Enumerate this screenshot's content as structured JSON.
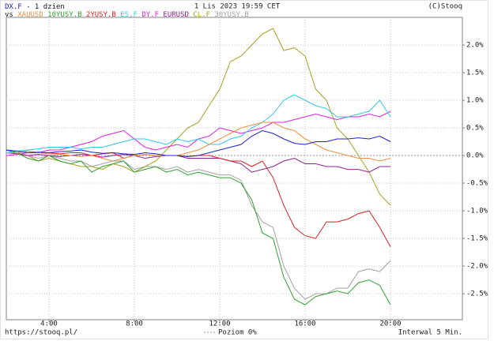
{
  "chart_data": {
    "type": "line",
    "period": "- 1 dzien",
    "date": "1 Lis 2023 19:59 CET",
    "copyright": "(C)Stooq",
    "legend_prefix": "vs",
    "footer_left": "https://stooq.pl/",
    "zero_line_label": "Poziom 0%",
    "footer_right": "Interwal 5 Min.",
    "grid": true,
    "x": [
      2,
      2.5,
      3,
      3.5,
      4,
      4.5,
      5,
      5.5,
      6,
      6.5,
      7,
      7.5,
      8,
      8.5,
      9,
      9.5,
      10,
      10.5,
      11,
      11.5,
      12,
      12.5,
      13,
      13.5,
      14,
      14.5,
      15,
      15.5,
      16,
      16.5,
      17,
      17.5,
      18,
      18.5,
      19,
      19.5,
      20
    ],
    "xlim": [
      2,
      23.37
    ],
    "xticks": [
      {
        "value": 4,
        "label": "4:00"
      },
      {
        "value": 8,
        "label": "8:00"
      },
      {
        "value": 12,
        "label": "12:00"
      },
      {
        "value": 16,
        "label": "16:00"
      },
      {
        "value": 20,
        "label": "20:00"
      }
    ],
    "ylim": [
      -2.97,
      2.5
    ],
    "yticks": [
      {
        "value": 2,
        "label": "2.0%"
      },
      {
        "value": 1.5,
        "label": "1.5%"
      },
      {
        "value": 1,
        "label": "1.0%"
      },
      {
        "value": 0.5,
        "label": "0.5%"
      },
      {
        "value": 0,
        "label": "0.0%"
      },
      {
        "value": -0.5,
        "label": "-0.5%"
      },
      {
        "value": -1,
        "label": "-1.0%"
      },
      {
        "value": -1.5,
        "label": "-1.5%"
      },
      {
        "value": -2,
        "label": "-2.0%"
      },
      {
        "value": -2.5,
        "label": "-2.5%"
      }
    ],
    "series": [
      {
        "name": "DX.F",
        "color": "#2020d0",
        "values": [
          0.1,
          0.08,
          0.05,
          0.06,
          0.05,
          0.07,
          0.08,
          0.1,
          0.06,
          0.04,
          0.05,
          0.03,
          0.02,
          0.05,
          0.03,
          0.0,
          0.0,
          -0.02,
          0.0,
          0.05,
          0.1,
          0.15,
          0.2,
          0.35,
          0.45,
          0.4,
          0.3,
          0.22,
          0.2,
          0.25,
          0.25,
          0.3,
          0.3,
          0.32,
          0.3,
          0.35,
          0.25
        ]
      },
      {
        "name": "XAUUSD",
        "color": "#f09040",
        "values": [
          0.05,
          0.05,
          0.08,
          0.05,
          0.03,
          0.02,
          0.0,
          -0.02,
          0.0,
          -0.05,
          -0.1,
          -0.05,
          0.0,
          0.02,
          0.0,
          0.0,
          0.0,
          0.05,
          0.1,
          0.2,
          0.3,
          0.4,
          0.5,
          0.55,
          0.6,
          0.6,
          0.5,
          0.45,
          0.3,
          0.2,
          0.1,
          0.05,
          0.0,
          -0.05,
          -0.05,
          -0.1,
          -0.05
        ]
      },
      {
        "name": "10YUSY.B",
        "color": "#30a030",
        "values": [
          0.1,
          0.05,
          -0.05,
          -0.1,
          0.0,
          -0.1,
          -0.15,
          -0.1,
          -0.3,
          -0.2,
          -0.15,
          -0.1,
          -0.3,
          -0.25,
          -0.2,
          -0.3,
          -0.25,
          -0.35,
          -0.3,
          -0.35,
          -0.4,
          -0.4,
          -0.5,
          -0.8,
          -1.4,
          -1.5,
          -2.2,
          -2.6,
          -2.7,
          -2.55,
          -2.5,
          -2.45,
          -2.5,
          -2.3,
          -2.25,
          -2.35,
          -2.7
        ]
      },
      {
        "name": "2YUSY.B",
        "color": "#e02020",
        "values": [
          0.05,
          0.05,
          0.08,
          0.05,
          0.05,
          0.03,
          0.05,
          0.05,
          0.0,
          0.03,
          0.05,
          -0.05,
          0.0,
          0.02,
          0.0,
          0.0,
          0.0,
          -0.02,
          0.0,
          0.0,
          -0.05,
          -0.1,
          -0.1,
          -0.2,
          -0.1,
          -0.4,
          -0.9,
          -1.3,
          -1.45,
          -1.5,
          -1.2,
          -1.2,
          -1.15,
          -1.05,
          -1.0,
          -1.3,
          -1.65
        ]
      },
      {
        "name": "ES.F",
        "color": "#30c8e8",
        "values": [
          0.05,
          0.08,
          0.1,
          0.12,
          0.15,
          0.15,
          0.15,
          0.12,
          0.15,
          0.15,
          0.2,
          0.25,
          0.3,
          0.3,
          0.25,
          0.2,
          0.3,
          0.25,
          0.3,
          0.2,
          0.2,
          0.3,
          0.35,
          0.5,
          0.6,
          0.75,
          1.0,
          1.1,
          1.0,
          0.9,
          0.85,
          0.7,
          0.7,
          0.75,
          0.8,
          1.0,
          0.7
        ]
      },
      {
        "name": "DY.F",
        "color": "#e020e0",
        "values": [
          0.0,
          0.02,
          0.05,
          0.05,
          0.1,
          0.1,
          0.15,
          0.2,
          0.25,
          0.35,
          0.4,
          0.45,
          0.3,
          0.15,
          0.1,
          0.15,
          0.2,
          0.15,
          0.3,
          0.35,
          0.5,
          0.45,
          0.4,
          0.45,
          0.5,
          0.6,
          0.6,
          0.65,
          0.7,
          0.75,
          0.7,
          0.65,
          0.7,
          0.7,
          0.75,
          0.7,
          0.8
        ]
      },
      {
        "name": "EURUSD",
        "color": "#902090",
        "values": [
          0.05,
          0.03,
          0.0,
          0.02,
          0.0,
          -0.02,
          0.0,
          0.02,
          0.0,
          -0.03,
          0.0,
          0.02,
          0.0,
          -0.05,
          -0.02,
          0.0,
          0.0,
          -0.05,
          -0.05,
          -0.05,
          -0.05,
          -0.1,
          -0.15,
          -0.3,
          -0.25,
          -0.2,
          -0.1,
          -0.05,
          -0.15,
          -0.15,
          -0.2,
          -0.2,
          -0.25,
          -0.25,
          -0.3,
          -0.2,
          -0.2
        ]
      },
      {
        "name": "CL.F",
        "color": "#a8a020",
        "values": [
          0.1,
          0.05,
          0.0,
          -0.1,
          -0.05,
          -0.1,
          -0.15,
          -0.2,
          -0.2,
          -0.25,
          -0.15,
          -0.2,
          -0.3,
          -0.2,
          -0.1,
          0.1,
          0.3,
          0.5,
          0.6,
          0.9,
          1.2,
          1.7,
          1.8,
          2.0,
          2.2,
          2.3,
          1.9,
          1.95,
          1.8,
          1.2,
          1.0,
          0.5,
          0.3,
          0.0,
          -0.3,
          -0.7,
          -0.9
        ]
      },
      {
        "name": "30YUSY.B",
        "color": "#a0a0a0",
        "values": [
          0.1,
          0.05,
          0.0,
          -0.05,
          0.0,
          -0.05,
          -0.1,
          -0.1,
          -0.2,
          -0.15,
          -0.1,
          -0.1,
          -0.25,
          -0.2,
          -0.2,
          -0.25,
          -0.2,
          -0.3,
          -0.25,
          -0.3,
          -0.35,
          -0.35,
          -0.45,
          -0.9,
          -1.2,
          -1.3,
          -2.0,
          -2.4,
          -2.6,
          -2.5,
          -2.5,
          -2.4,
          -2.4,
          -2.1,
          -2.05,
          -2.1,
          -1.9
        ]
      }
    ]
  }
}
